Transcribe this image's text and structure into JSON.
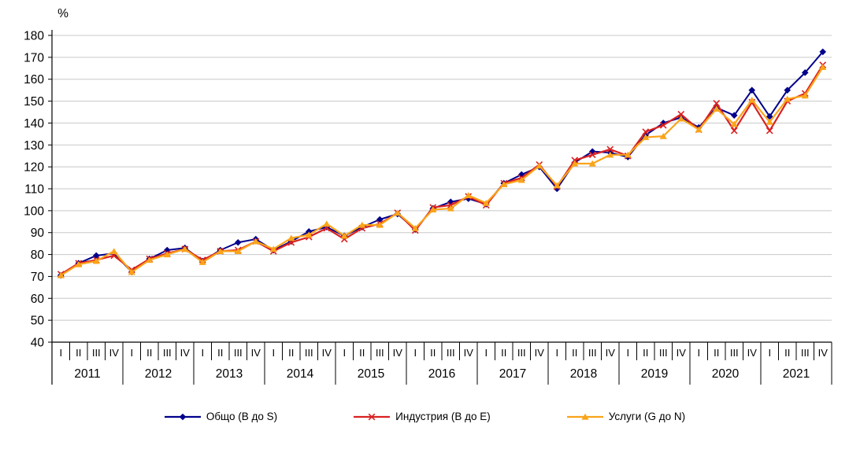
{
  "chart_data": {
    "type": "line",
    "title": "",
    "ylabel": "%",
    "xlabel": "",
    "ylim": [
      40,
      180
    ],
    "y_ticks": [
      180,
      170,
      160,
      150,
      140,
      130,
      120,
      110,
      100,
      90,
      80,
      70,
      60,
      50,
      40
    ],
    "grid": "horizontal-only",
    "legend_position": "bottom-center",
    "years": [
      "2011",
      "2012",
      "2013",
      "2014",
      "2015",
      "2016",
      "2017",
      "2018",
      "2019",
      "2020",
      "2021"
    ],
    "quarter_labels": [
      "I",
      "II",
      "III",
      "IV"
    ],
    "series": [
      {
        "name": "Общо (B до S)",
        "color": "#00008B",
        "marker": "diamond",
        "values": [
          70.5,
          76,
          79.5,
          80.5,
          72,
          78,
          82,
          83,
          77,
          82,
          85.5,
          87,
          82,
          86,
          90.5,
          92.5,
          88.5,
          92.5,
          96,
          98.5,
          91.5,
          101,
          104,
          105.5,
          103,
          112.5,
          116.5,
          120,
          110,
          122,
          127,
          126.5,
          124.5,
          134.5,
          140,
          142.5,
          138,
          147,
          143.5,
          155,
          143,
          155,
          163,
          172.5
        ]
      },
      {
        "name": "Индустрия (B до E)",
        "color": "#D92121",
        "marker": "x",
        "values": [
          71,
          76,
          77.5,
          79.5,
          73,
          78,
          80.5,
          82.5,
          77.5,
          81.5,
          82,
          86,
          81.5,
          85.5,
          88,
          92,
          87,
          92,
          94,
          99,
          91,
          101.5,
          102.5,
          106.5,
          102.5,
          112.5,
          115,
          121,
          111,
          123,
          125.5,
          128,
          125,
          136,
          139,
          144,
          137,
          149,
          136.5,
          149.5,
          136.5,
          150,
          153.5,
          166.5
        ]
      },
      {
        "name": "Услуги (G до N)",
        "color": "#FAA41A",
        "marker": "triangle",
        "values": [
          70.5,
          75.5,
          77,
          81.5,
          72,
          77.5,
          80,
          82.5,
          76.5,
          81.5,
          81.5,
          86,
          82.5,
          87.5,
          89,
          94,
          88.5,
          93.5,
          93.5,
          99,
          92,
          100.5,
          101,
          107,
          103.5,
          112,
          114,
          120.5,
          111.5,
          121.5,
          121.5,
          125.5,
          125.5,
          133.5,
          134,
          142,
          137,
          146.5,
          139.5,
          150.5,
          140.5,
          151,
          152.5,
          165.5
        ]
      }
    ],
    "colors": {
      "gridline": "#C8C8C8",
      "axis": "#000000",
      "text": "#000000",
      "background": "#FFFFFF"
    }
  }
}
